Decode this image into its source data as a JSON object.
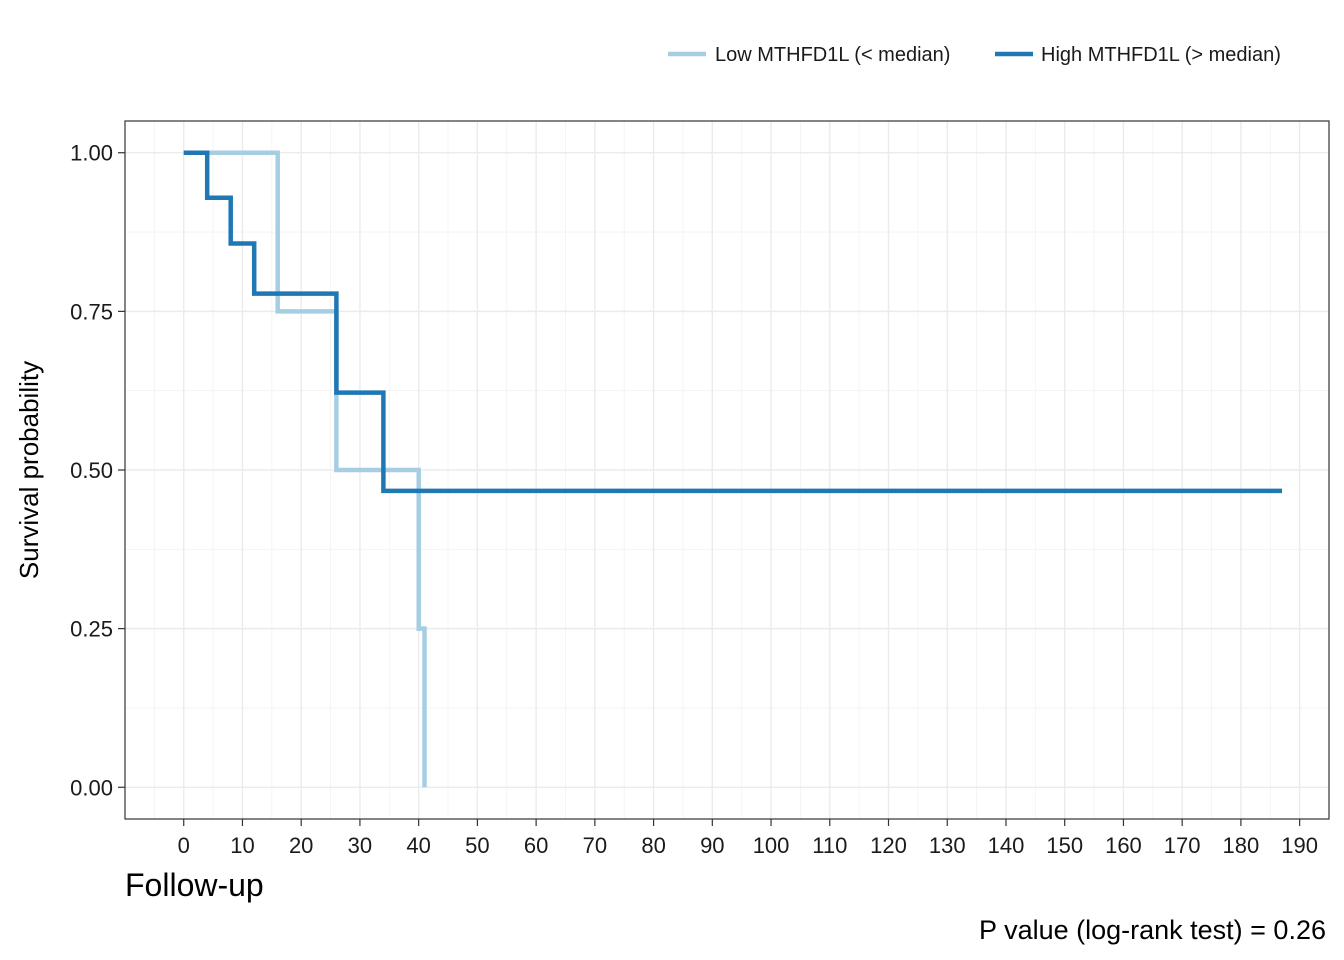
{
  "chart_data": {
    "type": "line",
    "title": "",
    "xlabel": "Follow-up",
    "ylabel": "Survival probability",
    "xlim": [
      -10,
      195
    ],
    "ylim": [
      -0.05,
      1.05
    ],
    "x_ticks": [
      0,
      10,
      20,
      30,
      40,
      50,
      60,
      70,
      80,
      90,
      100,
      110,
      120,
      130,
      140,
      150,
      160,
      170,
      180,
      190
    ],
    "y_ticks": [
      0,
      0.25,
      0.5,
      0.75,
      1.0
    ],
    "y_tick_labels": [
      "0.00",
      "0.25",
      "0.50",
      "0.75",
      "1.00"
    ],
    "grid": true,
    "legend_position": "top-right",
    "caption": "P value (log-rank test) = 0.26",
    "series": [
      {
        "name": "Low MTHFD1L (< median)",
        "color": "#a6cee3",
        "step_x": [
          0,
          16,
          16,
          26,
          26,
          40,
          40,
          41,
          41
        ],
        "step_y": [
          1.0,
          1.0,
          0.75,
          0.75,
          0.5,
          0.5,
          0.25,
          0.25,
          0.0
        ]
      },
      {
        "name": "High MTHFD1L (> median)",
        "color": "#1f78b4",
        "step_x": [
          0,
          4,
          4,
          8,
          8,
          12,
          12,
          26,
          26,
          34,
          34,
          187
        ],
        "step_y": [
          1.0,
          1.0,
          0.929,
          0.929,
          0.857,
          0.857,
          0.778,
          0.778,
          0.622,
          0.622,
          0.467,
          0.467
        ]
      }
    ]
  }
}
